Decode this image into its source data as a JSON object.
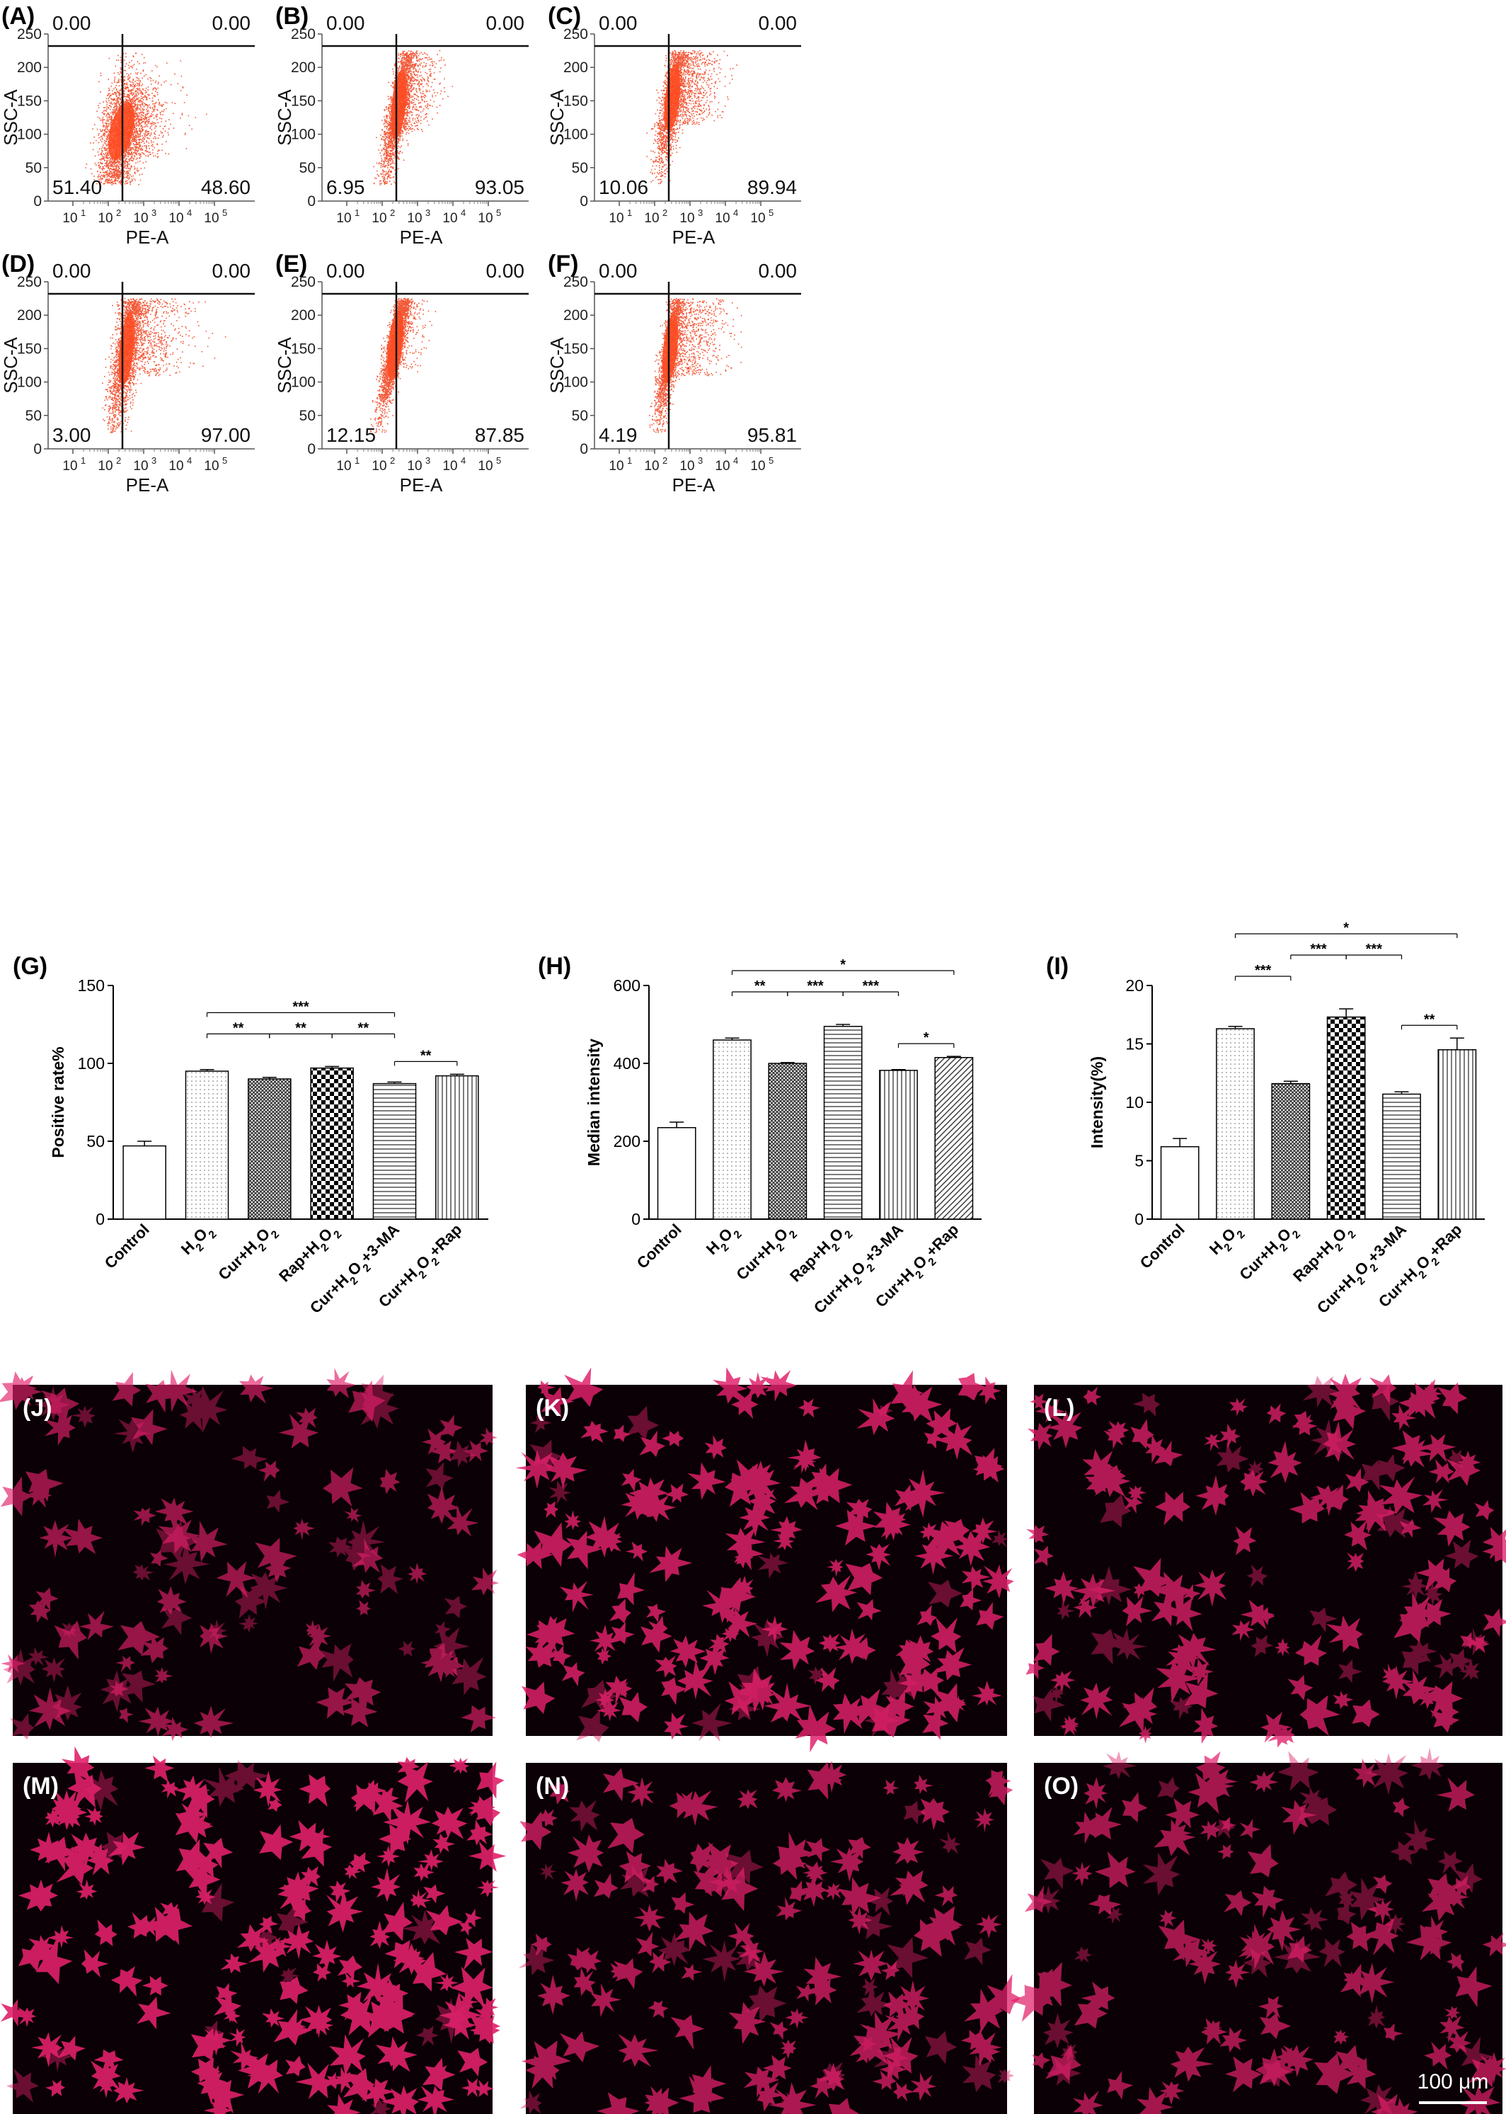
{
  "flow_panels": [
    {
      "label": "(A)",
      "xlabel": "PE-A",
      "ylabel": "SSC-A",
      "q_ul": "0.00",
      "q_ur": "0.00",
      "q_ll": "51.40",
      "q_lr": "48.60",
      "shape": "A"
    },
    {
      "label": "(B)",
      "xlabel": "PE-A",
      "ylabel": "SSC-A",
      "q_ul": "0.00",
      "q_ur": "0.00",
      "q_ll": "6.95",
      "q_lr": "93.05",
      "shape": "B"
    },
    {
      "label": "(C)",
      "xlabel": "PE-A",
      "ylabel": "SSC-A",
      "q_ul": "0.00",
      "q_ur": "0.00",
      "q_ll": "10.06",
      "q_lr": "89.94",
      "shape": "C"
    },
    {
      "label": "(D)",
      "xlabel": "PE-A",
      "ylabel": "SSC-A",
      "q_ul": "0.00",
      "q_ur": "0.00",
      "q_ll": "3.00",
      "q_lr": "97.00",
      "shape": "D"
    },
    {
      "label": "(E)",
      "xlabel": "PE-A",
      "ylabel": "SSC-A",
      "q_ul": "0.00",
      "q_ur": "0.00",
      "q_ll": "12.15",
      "q_lr": "87.85",
      "shape": "E"
    },
    {
      "label": "(F)",
      "xlabel": "PE-A",
      "ylabel": "SSC-A",
      "q_ul": "0.00",
      "q_ur": "0.00",
      "q_ll": "4.19",
      "q_lr": "95.81",
      "shape": "F"
    }
  ],
  "flow_axes": {
    "y_ticks": [
      "0",
      "50",
      "100",
      "150",
      "200",
      "250"
    ],
    "x_ticks": [
      "10",
      "10",
      "10",
      "10",
      "10"
    ],
    "x_exponents": [
      "1",
      "2",
      "3",
      "4",
      "5"
    ],
    "scatter_color": "#f25a3a",
    "dense_color": "#ff4a20"
  },
  "chart_data": [
    {
      "type": "bar",
      "label": "(G)",
      "categories": [
        "Control",
        "H2O2",
        "Cur+H2O2",
        "Rap+H2O2",
        "Cur+H2O2+3-MA",
        "Cur+H2O2+Rap"
      ],
      "values": [
        47,
        95,
        90,
        97,
        87,
        92
      ],
      "errors": [
        3,
        1,
        1,
        1,
        1,
        1
      ],
      "ylabel": "Positive rate%",
      "ylim": [
        0,
        150
      ],
      "yticks": [
        "0",
        "50",
        "100",
        "150"
      ],
      "significance": [
        {
          "from": 1,
          "to": 4,
          "text": "***",
          "level": 2
        },
        {
          "from": 1,
          "to": 2,
          "text": "**",
          "level": 1
        },
        {
          "from": 2,
          "to": 3,
          "text": "**",
          "level": 1
        },
        {
          "from": 3,
          "to": 4,
          "text": "**",
          "level": 1
        },
        {
          "from": 4,
          "to": 5,
          "text": "**",
          "level": 0
        }
      ]
    },
    {
      "type": "bar",
      "label": "(H)",
      "categories": [
        "Control",
        "H2O2",
        "Cur+H2O2",
        "Rap+H2O2",
        "Cur+H2O2+3-MA",
        "Cur+H2O2+Rap"
      ],
      "values": [
        235,
        460,
        400,
        495,
        382,
        415
      ],
      "errors": [
        14,
        5,
        2,
        5,
        2,
        3
      ],
      "ylabel": "Median  intensity",
      "ylim": [
        0,
        600
      ],
      "yticks": [
        "0",
        "200",
        "400",
        "600"
      ],
      "significance": [
        {
          "from": 1,
          "to": 5,
          "text": "*",
          "level": 2
        },
        {
          "from": 1,
          "to": 2,
          "text": "**",
          "level": 1
        },
        {
          "from": 2,
          "to": 3,
          "text": "***",
          "level": 1
        },
        {
          "from": 3,
          "to": 4,
          "text": "***",
          "level": 1
        },
        {
          "from": 4,
          "to": 5,
          "text": "*",
          "level": 0
        }
      ]
    },
    {
      "type": "bar",
      "label": "(I)",
      "categories": [
        "Control",
        "H2O2",
        "Cur+H2O2",
        "Rap+H2O2",
        "Cur+H2O2+3-MA",
        "Cur+H2O2+Rap"
      ],
      "values": [
        6.2,
        16.3,
        11.6,
        17.3,
        10.7,
        14.5
      ],
      "errors": [
        0.7,
        0.2,
        0.2,
        0.7,
        0.2,
        1.0
      ],
      "ylabel": "Intensity(%)",
      "ylim": [
        0,
        20
      ],
      "yticks": [
        "0",
        "5",
        "10",
        "15",
        "20"
      ],
      "significance": [
        {
          "from": 1,
          "to": 5,
          "text": "*",
          "level": 3
        },
        {
          "from": 2,
          "to": 3,
          "text": "***",
          "level": 2
        },
        {
          "from": 3,
          "to": 4,
          "text": "***",
          "level": 2
        },
        {
          "from": 1,
          "to": 2,
          "text": "***",
          "level": 1
        },
        {
          "from": 4,
          "to": 5,
          "text": "**",
          "level": 0
        }
      ]
    }
  ],
  "images": [
    {
      "label": "(J)",
      "density": 0.4
    },
    {
      "label": "(K)",
      "density": 0.85
    },
    {
      "label": "(L)",
      "density": 0.7
    },
    {
      "label": "(M)",
      "density": 1.0
    },
    {
      "label": "(N)",
      "density": 0.65
    },
    {
      "label": "(O)",
      "density": 0.55
    }
  ],
  "scale_bar": "100 μm",
  "cell_color": "#e0206a"
}
